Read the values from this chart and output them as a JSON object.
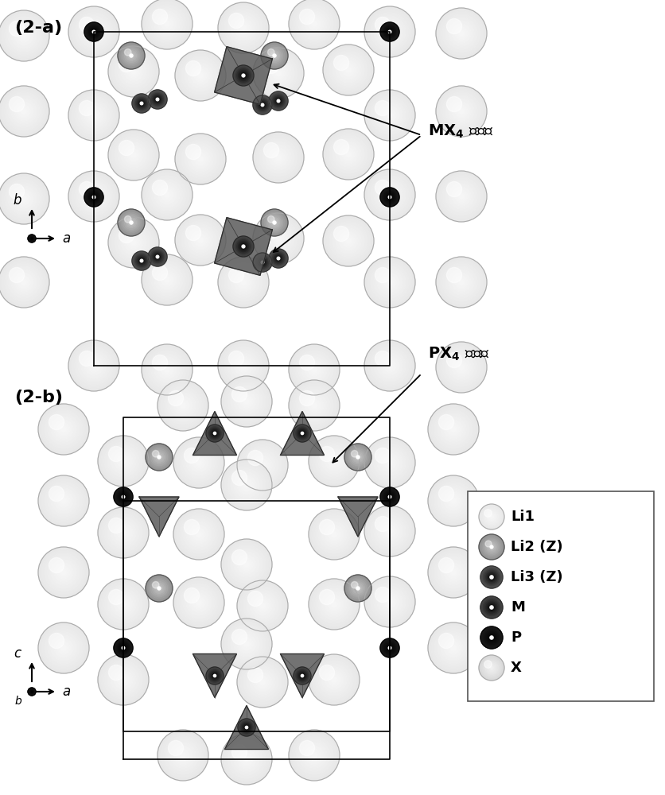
{
  "title_a": "(2-a)",
  "title_b": "(2-b)",
  "label_MX4": "MX₄ 四面体",
  "label_PX4": "PX₄ 四面体",
  "legend_entries": [
    "Li1",
    "Li2 (Z)",
    "Li3 (Z)",
    "M",
    "P",
    "X"
  ],
  "legend_colors": [
    "#f0f0f0",
    "#a0a0a0",
    "#505050",
    "#606060",
    "#202020",
    "#d8d8d8"
  ],
  "legend_edge_colors": [
    "#888888",
    "#606060",
    "#303030",
    "#404040",
    "#101010",
    "#a0a0a0"
  ],
  "bg_color": "#ffffff",
  "axis_color": "#000000",
  "text_color": "#000000",
  "box_color": "#000000",
  "font_size_title": 16,
  "font_size_label": 14,
  "font_size_legend": 13,
  "fig_width": 8.36,
  "fig_height": 10.0
}
